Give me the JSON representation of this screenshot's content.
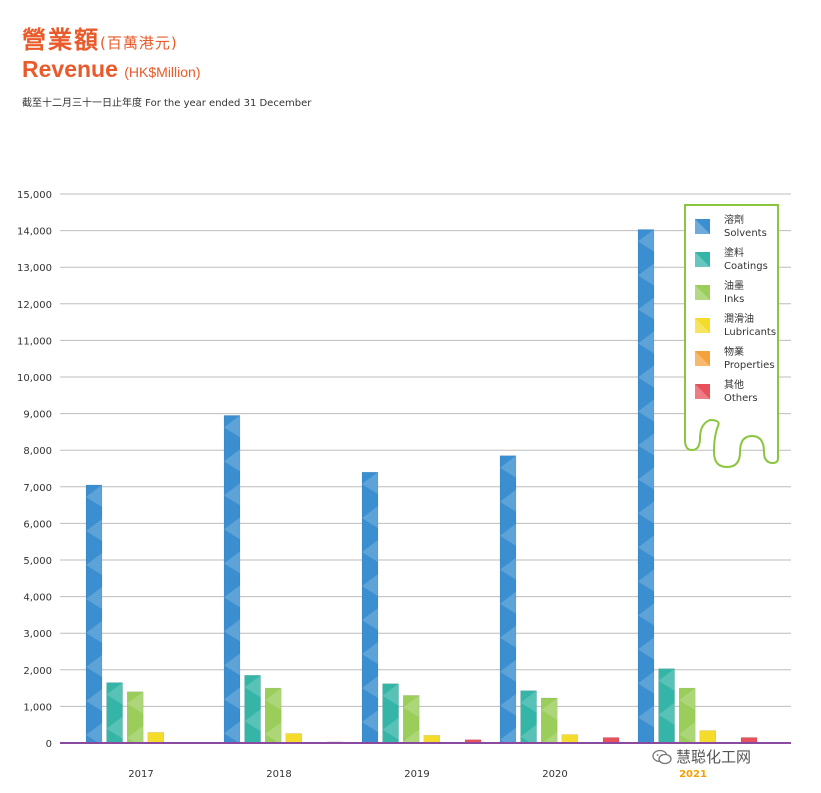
{
  "header": {
    "title_zh": "營業額",
    "title_zh_unit": "(百萬港元)",
    "title_en": "Revenue",
    "title_en_unit": "(HK$Million)",
    "subtitle": "截至十二月三十一日止年度 For the year ended 31 December"
  },
  "watermark": {
    "text": "慧聪化工网",
    "icon": "wechat-icon"
  },
  "chart_data": {
    "type": "bar",
    "categories": [
      "2017",
      "2018",
      "2019",
      "2020",
      "2021"
    ],
    "highlight_category": "2021",
    "ylim": [
      0,
      15000
    ],
    "yticks": [
      {
        "value": 0,
        "label": "0"
      },
      {
        "value": 1000,
        "label": "1,000"
      },
      {
        "value": 2000,
        "label": "2,000"
      },
      {
        "value": 3000,
        "label": "3,000"
      },
      {
        "value": 4000,
        "label": "4,000"
      },
      {
        "value": 5000,
        "label": "5,000"
      },
      {
        "value": 6000,
        "label": "6,000"
      },
      {
        "value": 7000,
        "label": "7,000"
      },
      {
        "value": 8000,
        "label": "8,000"
      },
      {
        "value": 9000,
        "label": "9,000"
      },
      {
        "value": 10000,
        "label": "10,000"
      },
      {
        "value": 11000,
        "label": "11,000"
      },
      {
        "value": 12000,
        "label": "12,000"
      },
      {
        "value": 13000,
        "label": "13,000"
      },
      {
        "value": 14000,
        "label": "14,000"
      },
      {
        "value": 15000,
        "label": "15,000"
      }
    ],
    "grid": true,
    "legend_position": "top-right",
    "series": [
      {
        "name_zh": "溶劑",
        "name_en": "Solvents",
        "color": "#3b8fd0",
        "values": [
          7050,
          8950,
          7400,
          7850,
          14030
        ]
      },
      {
        "name_zh": "塗料",
        "name_en": "Coatings",
        "color": "#35b5a8",
        "values": [
          1650,
          1850,
          1620,
          1430,
          2030
        ]
      },
      {
        "name_zh": "油墨",
        "name_en": "Inks",
        "color": "#9acd5a",
        "values": [
          1400,
          1500,
          1300,
          1230,
          1500
        ]
      },
      {
        "name_zh": "潤滑油",
        "name_en": "Lubricants",
        "color": "#f5dc2a",
        "values": [
          290,
          260,
          210,
          230,
          340
        ]
      },
      {
        "name_zh": "物業",
        "name_en": "Properties",
        "color": "#f5a23e",
        "values": [
          0,
          20,
          20,
          20,
          20
        ]
      },
      {
        "name_zh": "其他",
        "name_en": "Others",
        "color": "#e8505b",
        "values": [
          0,
          30,
          90,
          150,
          150
        ]
      }
    ]
  }
}
